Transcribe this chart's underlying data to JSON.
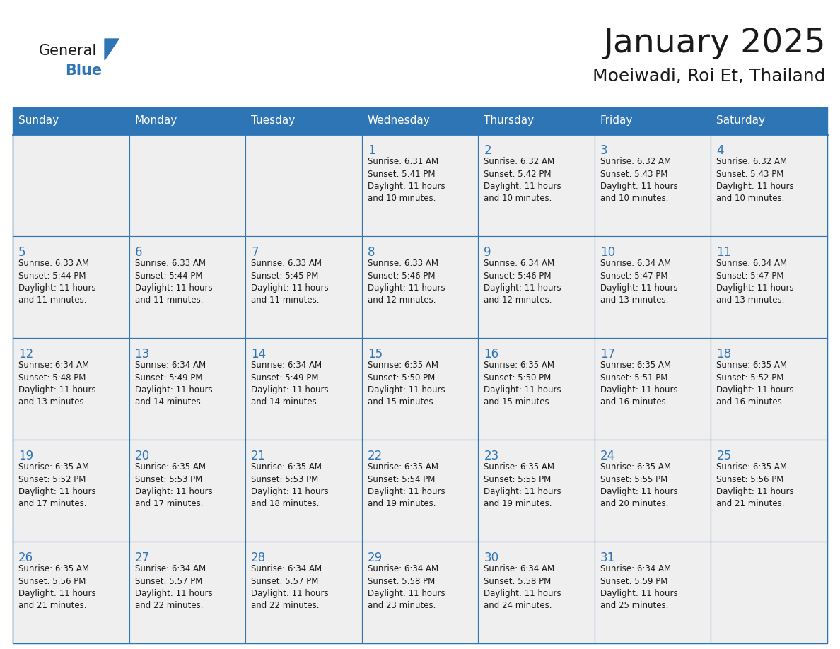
{
  "title": "January 2025",
  "subtitle": "Moeiwadi, Roi Et, Thailand",
  "header_color": "#2E75B6",
  "header_text_color": "#FFFFFF",
  "cell_bg_color": "#EFEFEF",
  "cell_border_color": "#2E75B6",
  "day_number_color": "#2E75B6",
  "text_color": "#1a1a1a",
  "days_of_week": [
    "Sunday",
    "Monday",
    "Tuesday",
    "Wednesday",
    "Thursday",
    "Friday",
    "Saturday"
  ],
  "logo_color_general": "#1a1a1a",
  "logo_color_blue": "#2E75B6",
  "logo_triangle_color": "#2E75B6",
  "calendar_data": [
    [
      {
        "day": null,
        "info": null
      },
      {
        "day": null,
        "info": null
      },
      {
        "day": null,
        "info": null
      },
      {
        "day": 1,
        "info": "Sunrise: 6:31 AM\nSunset: 5:41 PM\nDaylight: 11 hours\nand 10 minutes."
      },
      {
        "day": 2,
        "info": "Sunrise: 6:32 AM\nSunset: 5:42 PM\nDaylight: 11 hours\nand 10 minutes."
      },
      {
        "day": 3,
        "info": "Sunrise: 6:32 AM\nSunset: 5:43 PM\nDaylight: 11 hours\nand 10 minutes."
      },
      {
        "day": 4,
        "info": "Sunrise: 6:32 AM\nSunset: 5:43 PM\nDaylight: 11 hours\nand 10 minutes."
      }
    ],
    [
      {
        "day": 5,
        "info": "Sunrise: 6:33 AM\nSunset: 5:44 PM\nDaylight: 11 hours\nand 11 minutes."
      },
      {
        "day": 6,
        "info": "Sunrise: 6:33 AM\nSunset: 5:44 PM\nDaylight: 11 hours\nand 11 minutes."
      },
      {
        "day": 7,
        "info": "Sunrise: 6:33 AM\nSunset: 5:45 PM\nDaylight: 11 hours\nand 11 minutes."
      },
      {
        "day": 8,
        "info": "Sunrise: 6:33 AM\nSunset: 5:46 PM\nDaylight: 11 hours\nand 12 minutes."
      },
      {
        "day": 9,
        "info": "Sunrise: 6:34 AM\nSunset: 5:46 PM\nDaylight: 11 hours\nand 12 minutes."
      },
      {
        "day": 10,
        "info": "Sunrise: 6:34 AM\nSunset: 5:47 PM\nDaylight: 11 hours\nand 13 minutes."
      },
      {
        "day": 11,
        "info": "Sunrise: 6:34 AM\nSunset: 5:47 PM\nDaylight: 11 hours\nand 13 minutes."
      }
    ],
    [
      {
        "day": 12,
        "info": "Sunrise: 6:34 AM\nSunset: 5:48 PM\nDaylight: 11 hours\nand 13 minutes."
      },
      {
        "day": 13,
        "info": "Sunrise: 6:34 AM\nSunset: 5:49 PM\nDaylight: 11 hours\nand 14 minutes."
      },
      {
        "day": 14,
        "info": "Sunrise: 6:34 AM\nSunset: 5:49 PM\nDaylight: 11 hours\nand 14 minutes."
      },
      {
        "day": 15,
        "info": "Sunrise: 6:35 AM\nSunset: 5:50 PM\nDaylight: 11 hours\nand 15 minutes."
      },
      {
        "day": 16,
        "info": "Sunrise: 6:35 AM\nSunset: 5:50 PM\nDaylight: 11 hours\nand 15 minutes."
      },
      {
        "day": 17,
        "info": "Sunrise: 6:35 AM\nSunset: 5:51 PM\nDaylight: 11 hours\nand 16 minutes."
      },
      {
        "day": 18,
        "info": "Sunrise: 6:35 AM\nSunset: 5:52 PM\nDaylight: 11 hours\nand 16 minutes."
      }
    ],
    [
      {
        "day": 19,
        "info": "Sunrise: 6:35 AM\nSunset: 5:52 PM\nDaylight: 11 hours\nand 17 minutes."
      },
      {
        "day": 20,
        "info": "Sunrise: 6:35 AM\nSunset: 5:53 PM\nDaylight: 11 hours\nand 17 minutes."
      },
      {
        "day": 21,
        "info": "Sunrise: 6:35 AM\nSunset: 5:53 PM\nDaylight: 11 hours\nand 18 minutes."
      },
      {
        "day": 22,
        "info": "Sunrise: 6:35 AM\nSunset: 5:54 PM\nDaylight: 11 hours\nand 19 minutes."
      },
      {
        "day": 23,
        "info": "Sunrise: 6:35 AM\nSunset: 5:55 PM\nDaylight: 11 hours\nand 19 minutes."
      },
      {
        "day": 24,
        "info": "Sunrise: 6:35 AM\nSunset: 5:55 PM\nDaylight: 11 hours\nand 20 minutes."
      },
      {
        "day": 25,
        "info": "Sunrise: 6:35 AM\nSunset: 5:56 PM\nDaylight: 11 hours\nand 21 minutes."
      }
    ],
    [
      {
        "day": 26,
        "info": "Sunrise: 6:35 AM\nSunset: 5:56 PM\nDaylight: 11 hours\nand 21 minutes."
      },
      {
        "day": 27,
        "info": "Sunrise: 6:34 AM\nSunset: 5:57 PM\nDaylight: 11 hours\nand 22 minutes."
      },
      {
        "day": 28,
        "info": "Sunrise: 6:34 AM\nSunset: 5:57 PM\nDaylight: 11 hours\nand 22 minutes."
      },
      {
        "day": 29,
        "info": "Sunrise: 6:34 AM\nSunset: 5:58 PM\nDaylight: 11 hours\nand 23 minutes."
      },
      {
        "day": 30,
        "info": "Sunrise: 6:34 AM\nSunset: 5:58 PM\nDaylight: 11 hours\nand 24 minutes."
      },
      {
        "day": 31,
        "info": "Sunrise: 6:34 AM\nSunset: 5:59 PM\nDaylight: 11 hours\nand 25 minutes."
      },
      {
        "day": null,
        "info": null
      }
    ]
  ]
}
